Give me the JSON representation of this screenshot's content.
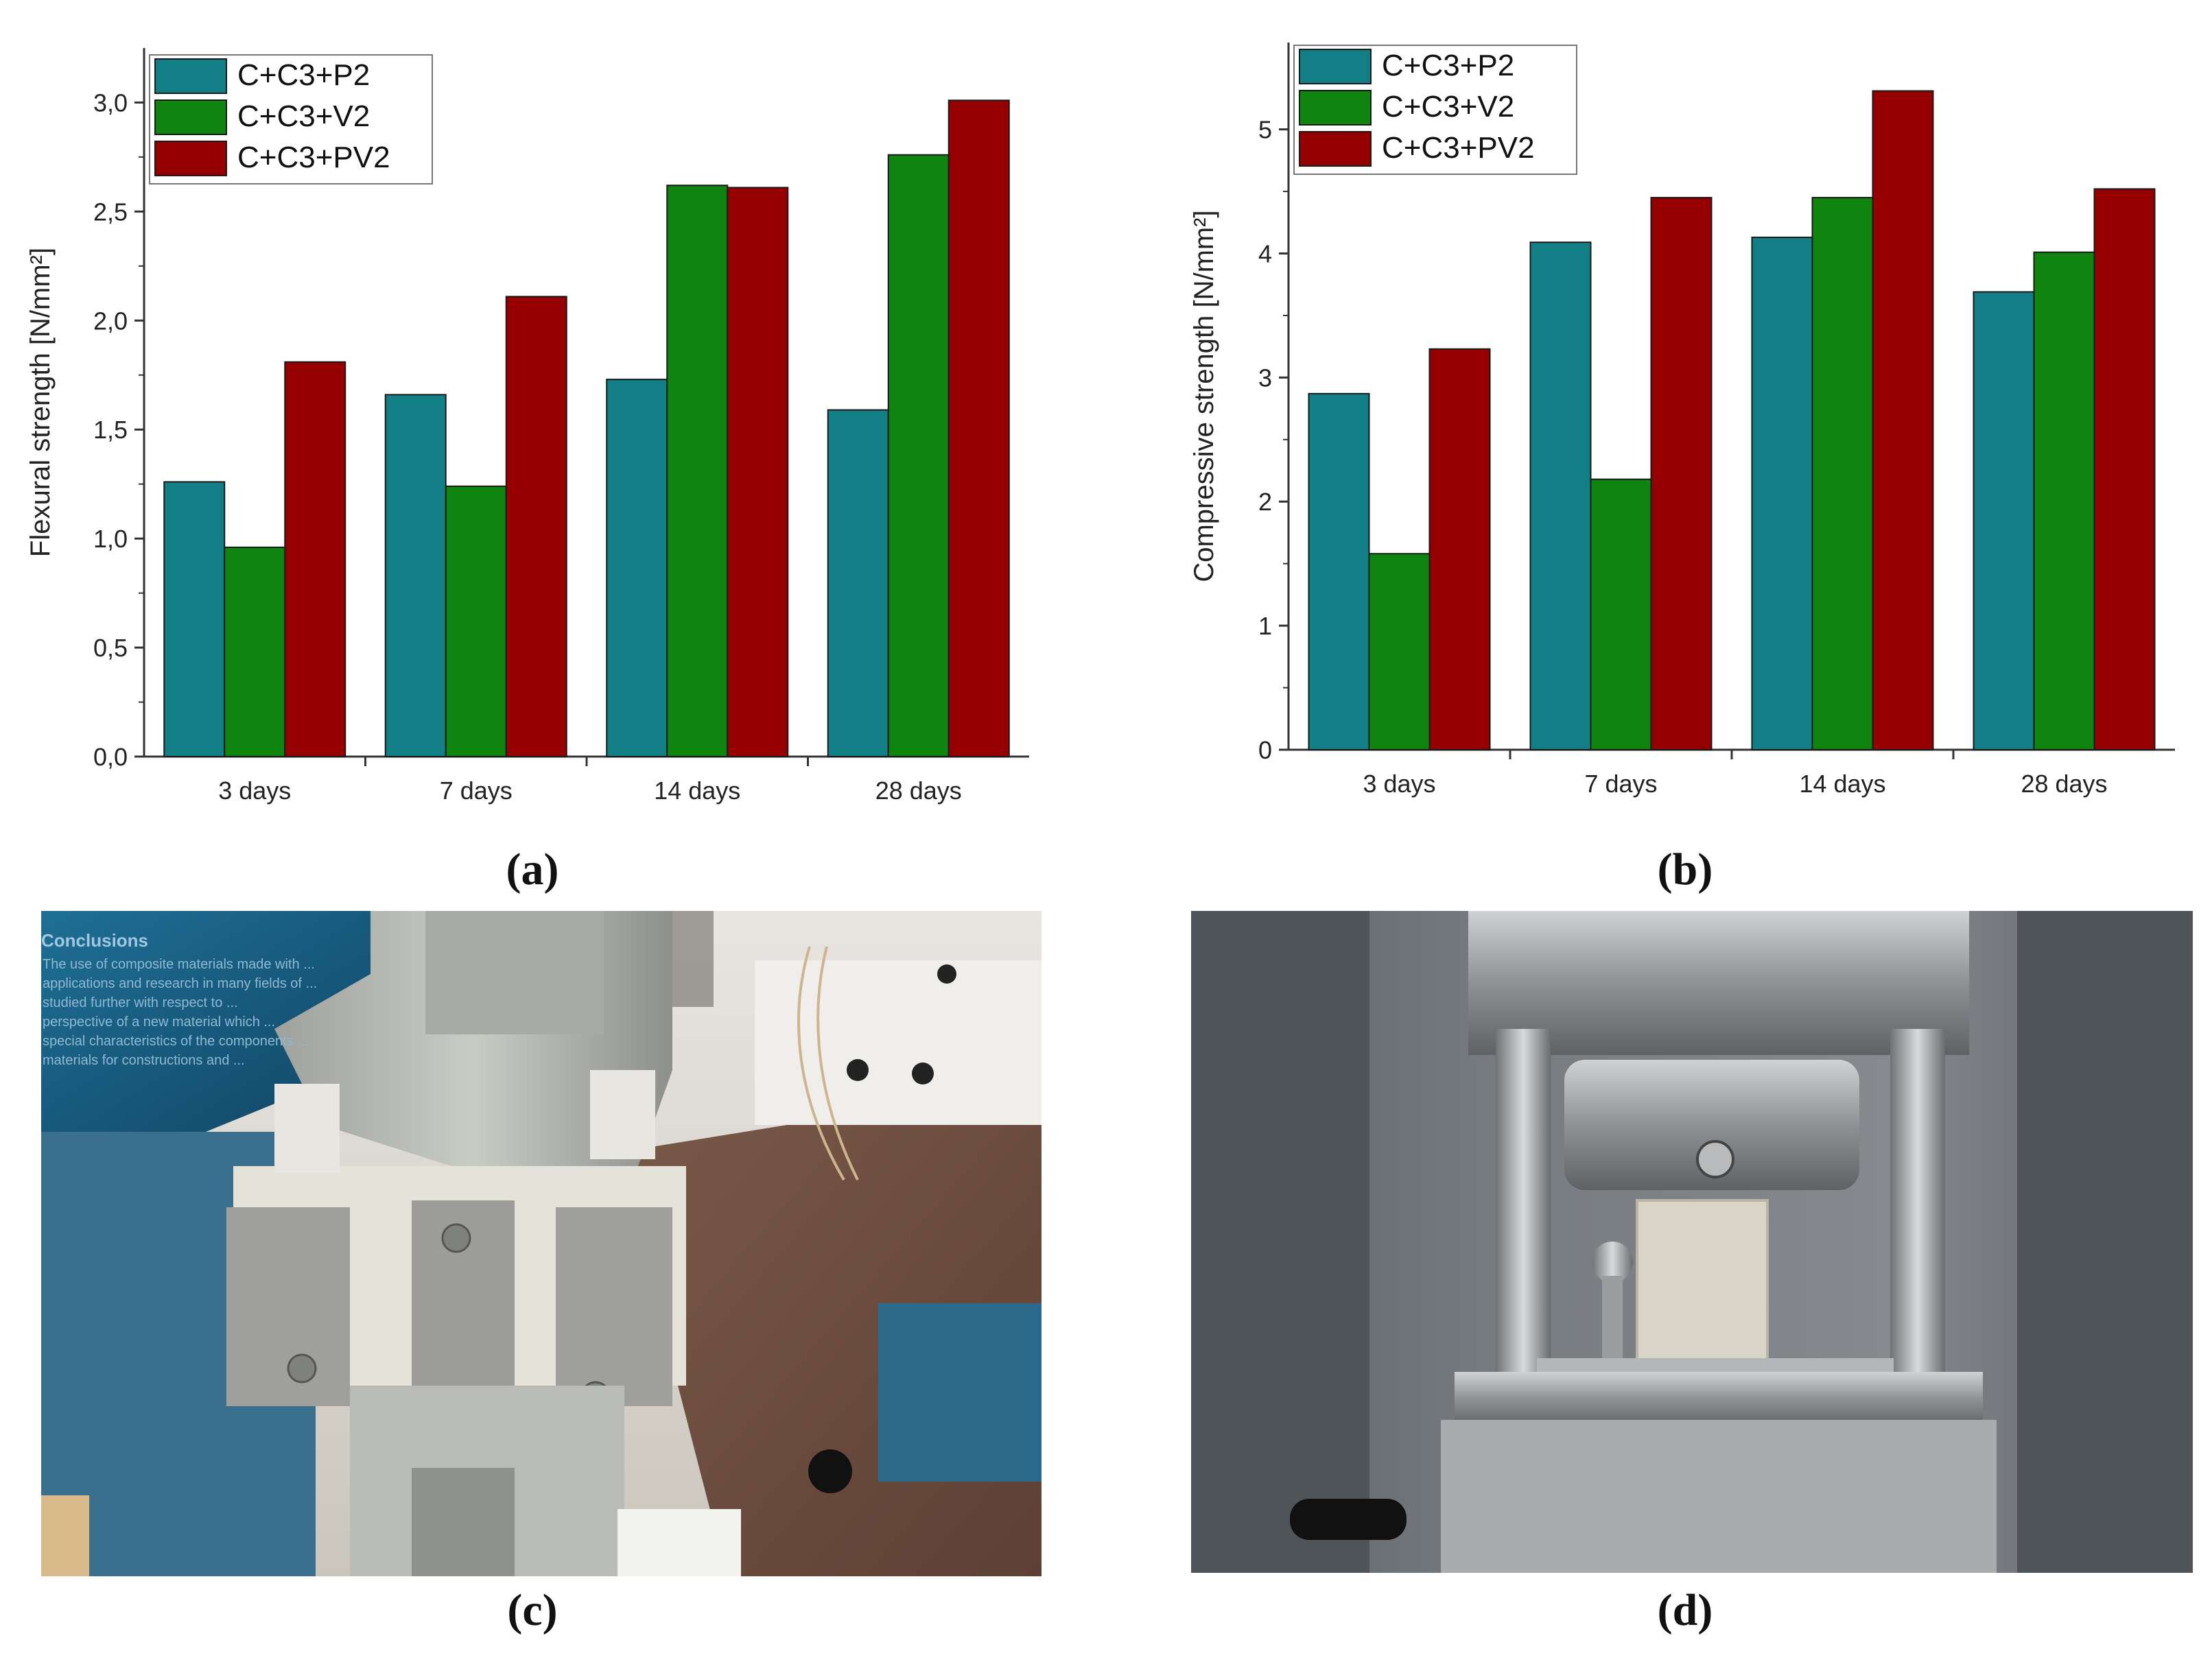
{
  "chart_data": [
    {
      "type": "bar",
      "panel": "a",
      "categories": [
        "3 days",
        "7 days",
        "14 days",
        "28 days"
      ],
      "series": [
        {
          "name": "C+C3+P2",
          "values": [
            1.26,
            1.66,
            1.73,
            1.59
          ]
        },
        {
          "name": "C+C3+V2",
          "values": [
            0.96,
            1.24,
            2.62,
            2.76
          ]
        },
        {
          "name": "C+C3+PV2",
          "values": [
            1.81,
            2.11,
            2.61,
            3.01
          ]
        }
      ],
      "ylabel": "Flexural strength [N/mm²]",
      "xlabel": "",
      "ylim": [
        0,
        3.25
      ],
      "yticks": [
        "0,0",
        "0,5",
        "1,0",
        "1,5",
        "2,0",
        "2,5",
        "3,0"
      ],
      "ytick_values": [
        0,
        0.5,
        1.0,
        1.5,
        2.0,
        2.5,
        3.0
      ],
      "legend": "top-left"
    },
    {
      "type": "bar",
      "panel": "b",
      "categories": [
        "3 days",
        "7 days",
        "14 days",
        "28 days"
      ],
      "series": [
        {
          "name": "C+C3+P2",
          "values": [
            2.87,
            4.09,
            4.13,
            3.69
          ]
        },
        {
          "name": "C+C3+V2",
          "values": [
            1.58,
            2.18,
            4.45,
            4.01
          ]
        },
        {
          "name": "C+C3+PV2",
          "values": [
            3.23,
            4.45,
            5.31,
            4.52
          ]
        }
      ],
      "ylabel": "Compressive strength [N/mm²]",
      "xlabel": "",
      "ylim": [
        0,
        5.7
      ],
      "yticks": [
        "0",
        "1",
        "2",
        "3",
        "4",
        "5"
      ],
      "ytick_values": [
        0,
        1,
        2,
        3,
        4,
        5
      ],
      "legend": "top-left"
    }
  ],
  "colors": {
    "C+C3+P2": "#127e86",
    "C+C3+V2": "#0f850f",
    "C+C3+PV2": "#960000"
  },
  "captions": {
    "a": "(a)",
    "b": "(b)",
    "c": "(c)",
    "d": "(d)"
  },
  "photos": {
    "c": {
      "title": "Conclusions",
      "lines": [
        "The use of composite materials made with ...",
        "applications and research in many fields of ...",
        "studied further with respect to ...",
        "perspective of a new material which ...",
        "special characteristics of the components ...",
        "materials for constructions and ..."
      ]
    }
  }
}
